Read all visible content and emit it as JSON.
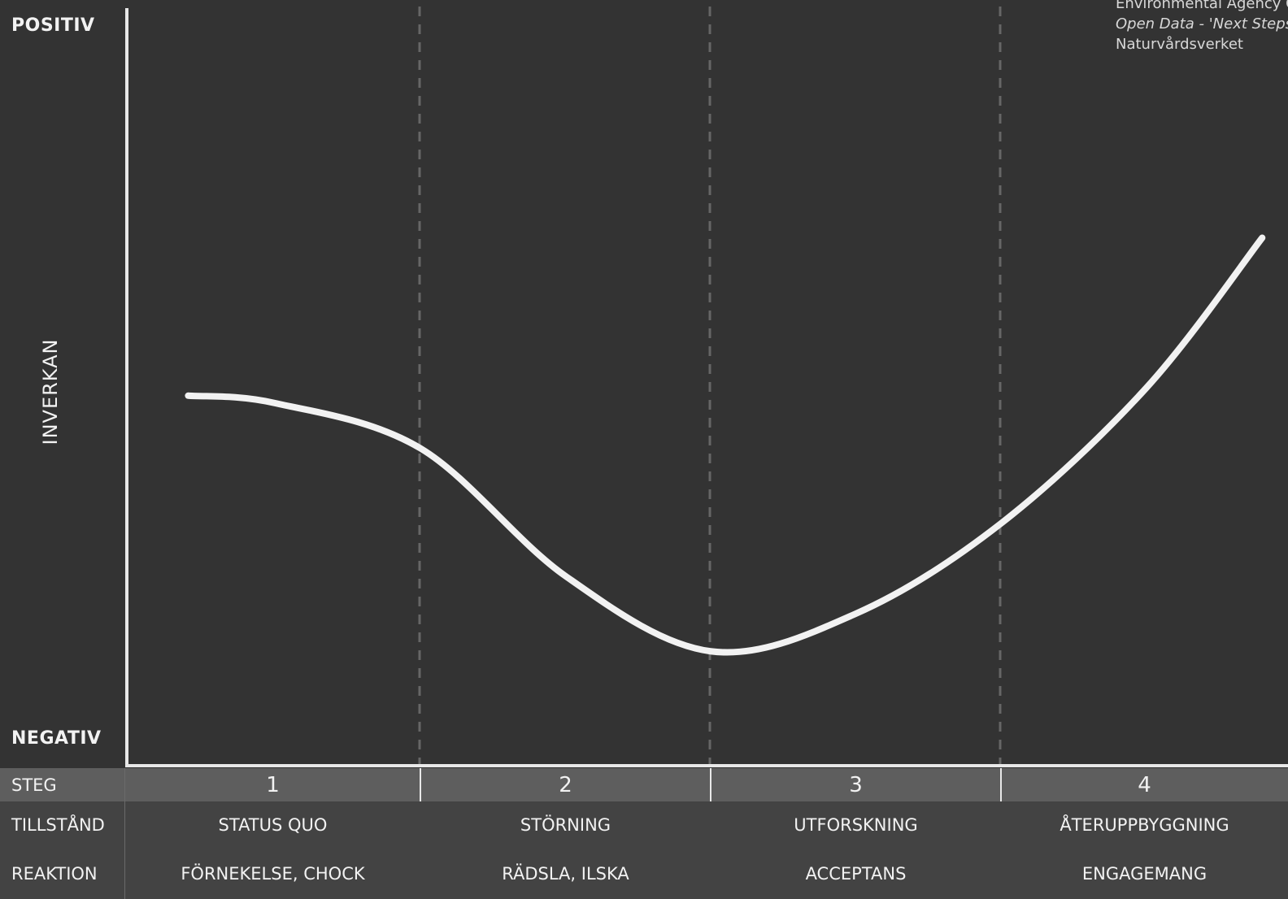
{
  "credit": {
    "line1": "Environmental Agency C",
    "line2": "Open Data - 'Next Steps'",
    "line3": "Naturvårdsverket"
  },
  "y_axis": {
    "label": "INVERKAN",
    "top_label": "POSITIV",
    "bottom_label": "NEGATIV"
  },
  "table": {
    "rows": [
      {
        "label": "STEG",
        "cells": [
          "1",
          "2",
          "3",
          "4"
        ]
      },
      {
        "label": "TILLSTÅND",
        "cells": [
          "STATUS QUO",
          "STÖRNING",
          "UTFORSKNING",
          "ÅTERUPPBYGGNING"
        ]
      },
      {
        "label": "REAKTION",
        "cells": [
          "FÖRNEKELSE, CHOCK",
          "RÄDSLA, ILSKA",
          "ACCEPTANS",
          "ENGAGEMANG"
        ]
      }
    ]
  },
  "curve": {
    "description_stage_count": 4,
    "color": "#f2f2f2",
    "points": [
      {
        "stage": 0.2,
        "impact": 0.49
      },
      {
        "stage": 0.5,
        "impact": 0.48
      },
      {
        "stage": 1.0,
        "impact": 0.42
      },
      {
        "stage": 1.5,
        "impact": 0.25
      },
      {
        "stage": 2.0,
        "impact": 0.15
      },
      {
        "stage": 2.5,
        "impact": 0.2
      },
      {
        "stage": 3.0,
        "impact": 0.32
      },
      {
        "stage": 3.5,
        "impact": 0.5
      },
      {
        "stage": 3.9,
        "impact": 0.7
      }
    ]
  },
  "colors": {
    "background": "#333333",
    "axis": "#e8e8e8",
    "divider": "#666666",
    "header_row": "#5e5e5e",
    "body_rows": "#434343"
  }
}
